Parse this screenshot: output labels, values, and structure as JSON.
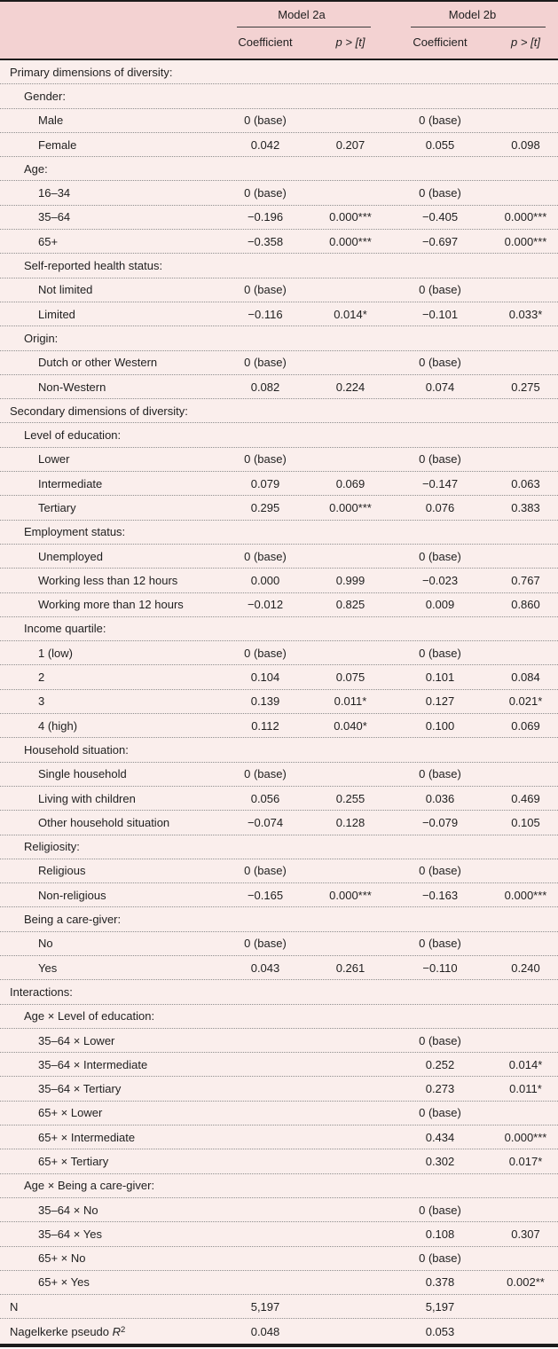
{
  "colors": {
    "header_bg": "#f3d2d2",
    "body_bg": "#faeeec",
    "rule": "#1c1c1c",
    "dotted_separator": "#8e8e8e",
    "text": "#1f1f1f"
  },
  "header": {
    "model_a": "Model 2a",
    "model_b": "Model 2b",
    "coefficient": "Coefficient",
    "p": "p > [t]"
  },
  "rows": [
    {
      "label": "Primary dimensions of diversity:",
      "indent": 0
    },
    {
      "label": "Gender:",
      "indent": 1
    },
    {
      "label": "Male",
      "indent": 2,
      "c1": "0 (base)",
      "c2": "0 (base)"
    },
    {
      "label": "Female",
      "indent": 2,
      "c1": "0.042",
      "p1": "0.207",
      "c2": "0.055",
      "p2": "0.098"
    },
    {
      "label": "Age:",
      "indent": 1
    },
    {
      "label": "16–34",
      "indent": 2,
      "c1": "0 (base)",
      "c2": "0 (base)"
    },
    {
      "label": "35–64",
      "indent": 2,
      "c1": "−0.196",
      "p1": "0.000***",
      "c2": "−0.405",
      "p2": "0.000***"
    },
    {
      "label": "65+",
      "indent": 2,
      "c1": "−0.358",
      "p1": "0.000***",
      "c2": "−0.697",
      "p2": "0.000***"
    },
    {
      "label": "Self-reported health status:",
      "indent": 1
    },
    {
      "label": "Not limited",
      "indent": 2,
      "c1": "0 (base)",
      "c2": "0 (base)"
    },
    {
      "label": "Limited",
      "indent": 2,
      "c1": "−0.116",
      "p1": "0.014*",
      "c2": "−0.101",
      "p2": "0.033*"
    },
    {
      "label": "Origin:",
      "indent": 1
    },
    {
      "label": "Dutch or other Western",
      "indent": 2,
      "c1": "0 (base)",
      "c2": "0 (base)"
    },
    {
      "label": "Non-Western",
      "indent": 2,
      "c1": "0.082",
      "p1": "0.224",
      "c2": "0.074",
      "p2": "0.275"
    },
    {
      "label": "Secondary dimensions of diversity:",
      "indent": 0
    },
    {
      "label": "Level of education:",
      "indent": 1
    },
    {
      "label": "Lower",
      "indent": 2,
      "c1": "0 (base)",
      "c2": "0 (base)"
    },
    {
      "label": "Intermediate",
      "indent": 2,
      "c1": "0.079",
      "p1": "0.069",
      "c2": "−0.147",
      "p2": "0.063"
    },
    {
      "label": "Tertiary",
      "indent": 2,
      "c1": "0.295",
      "p1": "0.000***",
      "c2": "0.076",
      "p2": "0.383"
    },
    {
      "label": "Employment status:",
      "indent": 1
    },
    {
      "label": "Unemployed",
      "indent": 2,
      "c1": "0 (base)",
      "c2": "0 (base)"
    },
    {
      "label": "Working less than 12 hours",
      "indent": 2,
      "c1": "0.000",
      "p1": "0.999",
      "c2": "−0.023",
      "p2": "0.767"
    },
    {
      "label": "Working more than 12 hours",
      "indent": 2,
      "c1": "−0.012",
      "p1": "0.825",
      "c2": "0.009",
      "p2": "0.860"
    },
    {
      "label": "Income quartile:",
      "indent": 1
    },
    {
      "label": "1 (low)",
      "indent": 2,
      "c1": "0 (base)",
      "c2": "0 (base)"
    },
    {
      "label": "2",
      "indent": 2,
      "c1": "0.104",
      "p1": "0.075",
      "c2": "0.101",
      "p2": "0.084"
    },
    {
      "label": "3",
      "indent": 2,
      "c1": "0.139",
      "p1": "0.011*",
      "c2": "0.127",
      "p2": "0.021*"
    },
    {
      "label": "4 (high)",
      "indent": 2,
      "c1": "0.112",
      "p1": "0.040*",
      "c2": "0.100",
      "p2": "0.069"
    },
    {
      "label": "Household situation:",
      "indent": 1
    },
    {
      "label": "Single household",
      "indent": 2,
      "c1": "0 (base)",
      "c2": "0 (base)"
    },
    {
      "label": "Living with children",
      "indent": 2,
      "c1": "0.056",
      "p1": "0.255",
      "c2": "0.036",
      "p2": "0.469"
    },
    {
      "label": "Other household situation",
      "indent": 2,
      "c1": "−0.074",
      "p1": "0.128",
      "c2": "−0.079",
      "p2": "0.105"
    },
    {
      "label": "Religiosity:",
      "indent": 1
    },
    {
      "label": "Religious",
      "indent": 2,
      "c1": "0 (base)",
      "c2": "0 (base)"
    },
    {
      "label": "Non-religious",
      "indent": 2,
      "c1": "−0.165",
      "p1": "0.000***",
      "c2": "−0.163",
      "p2": "0.000***"
    },
    {
      "label": "Being a care-giver:",
      "indent": 1
    },
    {
      "label": "No",
      "indent": 2,
      "c1": "0 (base)",
      "c2": "0 (base)"
    },
    {
      "label": "Yes",
      "indent": 2,
      "c1": "0.043",
      "p1": "0.261",
      "c2": "−0.110",
      "p2": "0.240"
    },
    {
      "label": "Interactions:",
      "indent": 0
    },
    {
      "label": "Age × Level of education:",
      "indent": 1
    },
    {
      "label": "35–64 × Lower",
      "indent": 2,
      "c2": "0 (base)"
    },
    {
      "label": "35–64 × Intermediate",
      "indent": 2,
      "c2": "0.252",
      "p2": "0.014*"
    },
    {
      "label": "35–64 × Tertiary",
      "indent": 2,
      "c2": "0.273",
      "p2": "0.011*"
    },
    {
      "label": "65+ × Lower",
      "indent": 2,
      "c2": "0 (base)"
    },
    {
      "label": "65+ × Intermediate",
      "indent": 2,
      "c2": "0.434",
      "p2": "0.000***"
    },
    {
      "label": "65+ × Tertiary",
      "indent": 2,
      "c2": "0.302",
      "p2": "0.017*"
    },
    {
      "label": "Age × Being a care-giver:",
      "indent": 1
    },
    {
      "label": "35–64 × No",
      "indent": 2,
      "c2": "0 (base)"
    },
    {
      "label": "35–64 × Yes",
      "indent": 2,
      "c2": "0.108",
      "p2": "0.307"
    },
    {
      "label": "65+ × No",
      "indent": 2,
      "c2": "0 (base)"
    },
    {
      "label": "65+ × Yes",
      "indent": 2,
      "c2": "0.378",
      "p2": "0.002**"
    },
    {
      "label": "N",
      "indent": 0,
      "c1": "5,197",
      "c2": "5,197"
    },
    {
      "label": "Nagelkerke pseudo ",
      "label_italic": "R",
      "label_sup": "2",
      "indent": 0,
      "c1": "0.048",
      "c2": "0.053"
    }
  ]
}
